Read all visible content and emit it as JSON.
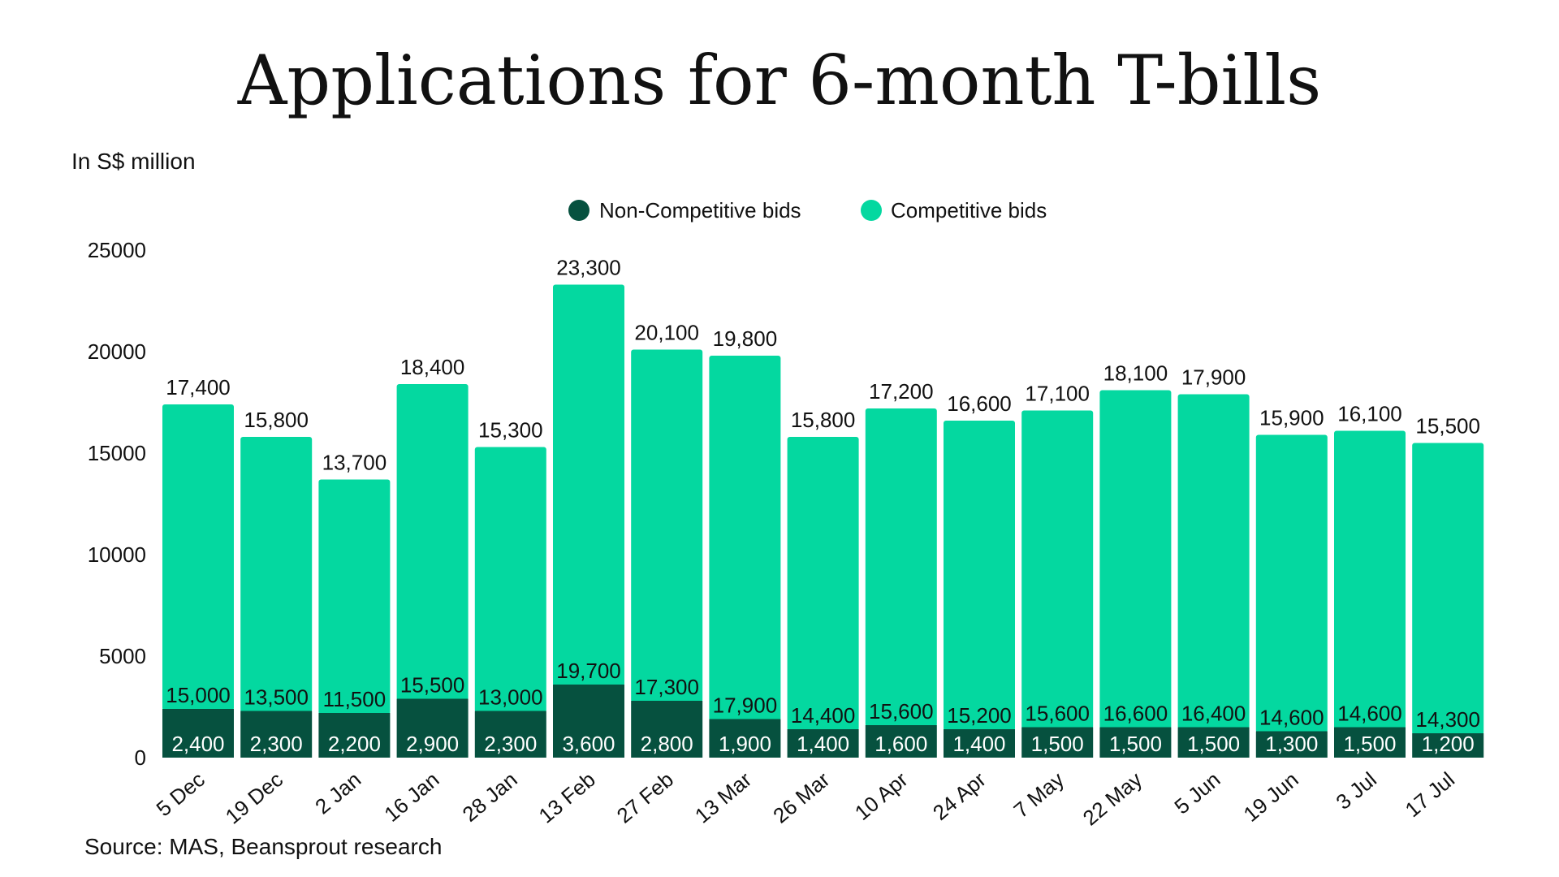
{
  "colors": {
    "non_competitive": "#06513f",
    "competitive": "#04d8a0"
  },
  "chart_data": {
    "type": "bar",
    "stacked": true,
    "title": "Applications for 6-month T-bills",
    "ylabel": "In S$ million",
    "xlabel": "",
    "ylim": [
      0,
      25000
    ],
    "yticks": [
      0,
      5000,
      10000,
      15000,
      20000,
      25000
    ],
    "legend": {
      "position": "top-center",
      "entries": [
        "Non-Competitive bids",
        "Competitive bids"
      ]
    },
    "categories": [
      "5 Dec",
      "19 Dec",
      "2 Jan",
      "16 Jan",
      "28 Jan",
      "13 Feb",
      "27 Feb",
      "13 Mar",
      "26 Mar",
      "10 Apr",
      "24 Apr",
      "7 May",
      "22 May",
      "5 Jun",
      "19 Jun",
      "3 Jul",
      "17 Jul"
    ],
    "series": [
      {
        "name": "Non-Competitive bids",
        "values": [
          2400,
          2300,
          2200,
          2900,
          2300,
          3600,
          2800,
          1900,
          1400,
          1600,
          1400,
          1500,
          1500,
          1500,
          1300,
          1500,
          1200
        ],
        "labels": [
          "2,400",
          "2,300",
          "2,200",
          "2,900",
          "2,300",
          "3,600",
          "2,800",
          "1,900",
          "1,400",
          "1,600",
          "1,400",
          "1,500",
          "1,500",
          "1,500",
          "1,300",
          "1,500",
          "1,200"
        ]
      },
      {
        "name": "Competitive bids",
        "values": [
          15000,
          13500,
          11500,
          15500,
          13000,
          19700,
          17300,
          17900,
          14400,
          15600,
          15200,
          15600,
          16600,
          16400,
          14600,
          14600,
          14300
        ],
        "labels": [
          "15,000",
          "13,500",
          "11,500",
          "15,500",
          "13,000",
          "19,700",
          "17,300",
          "17,900",
          "14,400",
          "15,600",
          "15,200",
          "15,600",
          "16,600",
          "16,400",
          "14,600",
          "14,600",
          "14,300"
        ]
      }
    ],
    "totals": [
      17400,
      15800,
      13700,
      18400,
      15300,
      23300,
      20100,
      19800,
      15800,
      17200,
      16600,
      17100,
      18100,
      17900,
      15900,
      16100,
      15500
    ],
    "total_labels": [
      "17,400",
      "15,800",
      "13,700",
      "18,400",
      "15,300",
      "23,300",
      "20,100",
      "19,800",
      "15,800",
      "17,200",
      "16,600",
      "17,100",
      "18,100",
      "17,900",
      "15,900",
      "16,100",
      "15,500"
    ],
    "source": "Source: MAS, Beansprout research"
  }
}
